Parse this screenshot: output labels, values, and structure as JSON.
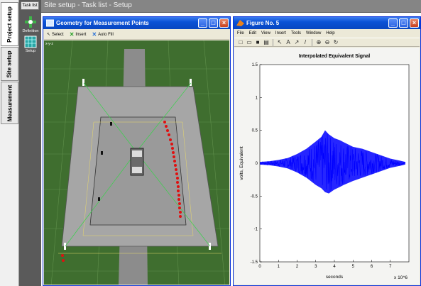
{
  "side_tabs": [
    {
      "label": "Project setup"
    },
    {
      "label": "Site setup"
    },
    {
      "label": "Measurement"
    }
  ],
  "task_tab": {
    "label": "Task list"
  },
  "tools": [
    {
      "label": "Definition",
      "icon": "crosshair-icon"
    },
    {
      "label": "Setup",
      "icon": "grid-setup-icon"
    }
  ],
  "header": {
    "title": "Site setup - Task list - Setup"
  },
  "geometry_window": {
    "title": "Geometry for Measurement Points",
    "toolbar": {
      "select": "Select",
      "insert": "Insert",
      "auto_fill": "Auto Fill"
    },
    "coord_label": "x-y-z",
    "colors": {
      "ground": "#3f6e2f",
      "road": "#8c8c8c",
      "platform": "#a8a8a8",
      "mic_line": "#39d24b",
      "points": "#e01010"
    }
  },
  "figure_window": {
    "title": "Figure No. 5",
    "menu": [
      "File",
      "Edit",
      "View",
      "Insert",
      "Tools",
      "Window",
      "Help"
    ],
    "toolbar_icons": [
      "new-icon",
      "open-icon",
      "save-icon",
      "print-icon",
      "arrow-icon",
      "text-icon",
      "arrow-line-icon",
      "line-icon",
      "zoom-in-icon",
      "zoom-out-icon",
      "rotate-icon"
    ]
  },
  "chart_data": {
    "type": "line",
    "title": "Interpolated Equivalent Signal",
    "xlabel": "seconds",
    "ylabel": "volts, Equivalent",
    "x_multiplier": "x 10^6",
    "xlim": [
      0,
      8
    ],
    "ylim": [
      -1.5,
      1.5
    ],
    "xticks": [
      "0",
      "1",
      "2",
      "3",
      "4",
      "5",
      "6",
      "7"
    ],
    "yticks": [
      "1.5",
      "1",
      "0.5",
      "0",
      "-0.5",
      "-1",
      "-1.5"
    ],
    "series": [
      {
        "color": "#0000ff",
        "x": [
          0.0,
          0.5,
          1.0,
          1.5,
          2.0,
          2.5,
          3.0,
          3.3,
          3.5,
          3.7,
          4.0,
          4.3,
          4.5,
          5.0,
          5.5,
          6.0,
          6.5,
          7.0,
          7.5,
          7.8
        ],
        "y_upper": [
          0.02,
          0.03,
          0.05,
          0.08,
          0.14,
          0.22,
          0.33,
          0.4,
          0.5,
          0.44,
          0.38,
          0.35,
          0.32,
          0.25,
          0.22,
          0.17,
          0.12,
          0.07,
          0.04,
          0.02
        ],
        "y_lower": [
          -0.02,
          -0.03,
          -0.05,
          -0.08,
          -0.14,
          -0.22,
          -0.33,
          -0.38,
          -0.44,
          -0.46,
          -0.4,
          -0.36,
          -0.33,
          -0.27,
          -0.22,
          -0.17,
          -0.12,
          -0.07,
          -0.04,
          -0.02
        ]
      }
    ]
  }
}
